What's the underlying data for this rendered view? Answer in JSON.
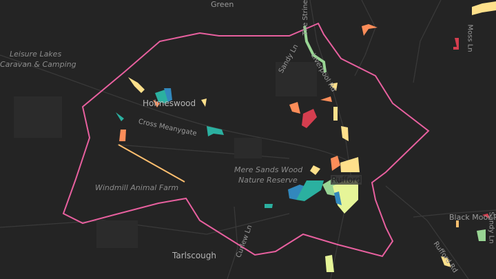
{
  "map": {
    "boundary_color": "#e8609f",
    "labels": {
      "green": "Green",
      "leisure": "Leisure Lakes",
      "caravan": "Caravan & Camping",
      "holmeswood": "Holmeswood",
      "cross_meanygate": "Cross Meanygate",
      "windmill": "Windmill Animal Farm",
      "mere_sands_1": "Mere Sands Wood",
      "mere_sands_2": "Nature Reserve",
      "rufford": "Rufford",
      "tarlscough": "Tarlscough",
      "curlew_ln": "Curlew Ln",
      "sandy_ln": "Sandy Ln",
      "the_strine": "The Strine",
      "liverpool_rd": "Liverpool Rd",
      "moss_ln": "Moss Ln",
      "black_moor": "Black Moor Rd",
      "rufford_rd": "Rufford Rd",
      "sandy_ln_2": "Sandy Ln"
    },
    "palette": [
      "#d53e4f",
      "#fc8d59",
      "#fee08b",
      "#e6f598",
      "#99d594",
      "#3288bd",
      "#2bb0a0"
    ]
  }
}
